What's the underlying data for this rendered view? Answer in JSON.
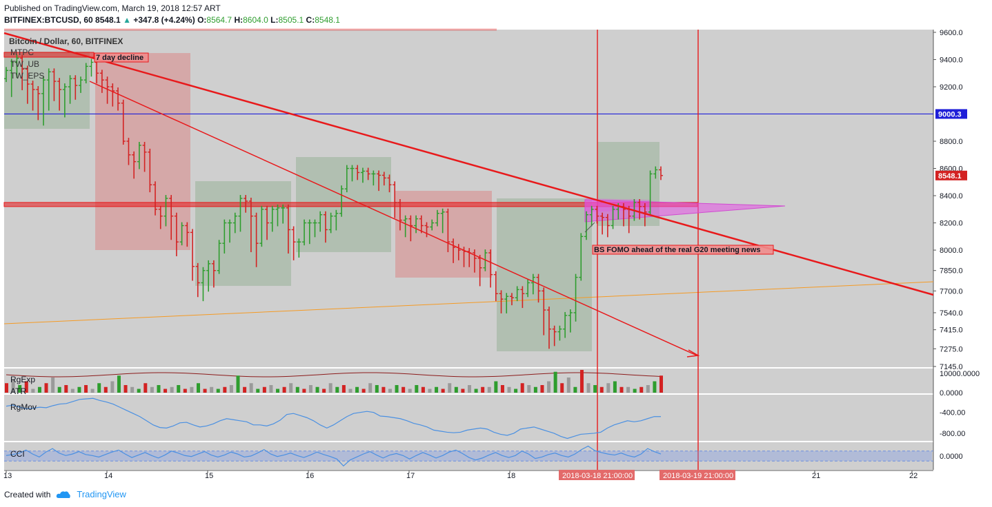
{
  "header": {
    "published": "Published on TradingView.com, March 19, 2018 12:57 ART",
    "symbol": "BITFINEX:BTCUSD, 60",
    "last": "8548.1",
    "change": "+347.8 (+4.24%)",
    "o_label": "O:",
    "o": "8564.7",
    "h_label": "H:",
    "h": "8604.0",
    "l_label": "L:",
    "l": "8505.1",
    "c_label": "C:",
    "c": "8548.1"
  },
  "footer": {
    "created_with": "Created with",
    "brand": "TradingView"
  },
  "colors": {
    "bull": "#2e9d2e",
    "bear": "#d32222",
    "trend": "#e8191b",
    "blue_level": "#1f1fd8",
    "orange": "#f59a23",
    "indicator": "#4a90e2"
  },
  "chart_data": {
    "type": "candlestick",
    "title": "Bitcoin / Dollar, 60, BITFINEX",
    "studies": [
      "MTPC",
      "TW_UB",
      "TW_EPS"
    ],
    "yaxis_ticks": [
      "9600.0",
      "9400.0",
      "9200.0",
      "8800.0",
      "8600.0",
      "8400.0",
      "8200.0",
      "8000.0",
      "7850.0",
      "7700.0",
      "7540.0",
      "7415.0",
      "7275.0",
      "7145.0"
    ],
    "xaxis_ticks": [
      "13",
      "14",
      "15",
      "16",
      "17",
      "18",
      "21",
      "22"
    ],
    "ylim": [
      7140,
      9620
    ],
    "price_tags": [
      {
        "label": "9000.3",
        "value": 9000.3,
        "color": "#1f1fd8"
      },
      {
        "label": "8548.1",
        "value": 8548.1,
        "color": "#d32222"
      }
    ],
    "horizontal_levels": [
      {
        "name": "blue",
        "value": 9000.3
      },
      {
        "name": "resistance",
        "value": 8335
      }
    ],
    "annotations": [
      {
        "text": "7 day decline"
      },
      {
        "text": "BS FOMO ahead of the real G20 meeting news"
      }
    ],
    "time_markers": [
      "2018-03-18 21:00:00",
      "2018-03-19 21:00:00"
    ],
    "candles": [
      9260,
      9320,
      9150,
      9380,
      9290,
      9410,
      9200,
      9330,
      9100,
      9220,
      9050,
      9180,
      8980,
      9150,
      8940,
      9250,
      9050,
      9310,
      9120,
      9240,
      9050,
      9180,
      9000,
      9200,
      9100,
      9260,
      9130,
      9210,
      9180,
      9250,
      9260,
      9350,
      9300,
      9380,
      9250,
      9300,
      9180,
      9250,
      9100,
      9200,
      9080,
      9170,
      9050,
      9080,
      8900,
      8800,
      8650,
      8700,
      8550,
      8650,
      8620,
      8770,
      8600,
      8720,
      8450,
      8480,
      8280,
      8300,
      8180,
      8250,
      8200,
      8380,
      8100,
      8250,
      7980,
      8060,
      8080,
      8180,
      8050,
      8130,
      7800,
      7880,
      7680,
      7760,
      7650,
      7850,
      7720,
      7900,
      7750,
      7850,
      7950,
      8050,
      8000,
      8200,
      8080,
      8200,
      8150,
      8250,
      8160,
      8380,
      8300,
      8360,
      8010,
      8250,
      7900,
      8050,
      8050,
      8300,
      8100,
      8200,
      8160,
      8300,
      8200,
      8310,
      8220,
      8310,
      8000,
      8150,
      7950,
      8060,
      7970,
      8060,
      8080,
      8200,
      8070,
      8200,
      8120,
      8200,
      8160,
      8260,
      8080,
      8150,
      8160,
      8250,
      8170,
      8270,
      8330,
      8450,
      8480,
      8600,
      8530,
      8600,
      8540,
      8570,
      8520,
      8580,
      8540,
      8560,
      8500,
      8560,
      8460,
      8550,
      8500,
      8530,
      8450,
      8480,
      8260,
      8350,
      8170,
      8220,
      8120,
      8230,
      8090,
      8180,
      8150,
      8230,
      8150,
      8180,
      8120,
      8170,
      8180,
      8200,
      8220,
      8270,
      8150,
      8280,
      8010,
      8060,
      7930,
      8020,
      7950,
      8000,
      7900,
      7990,
      7900,
      7980,
      7860,
      7940,
      7760,
      7870,
      7870,
      7980,
      7750,
      7820,
      7650,
      7680,
      7560,
      7640,
      7560,
      7660,
      7620,
      7650,
      7660,
      7710,
      7600,
      7680,
      7700,
      7760,
      7700,
      7800,
      7640,
      7700,
      7400,
      7560,
      7300,
      7420,
      7320,
      7400,
      7360,
      7420,
      7380,
      7520,
      7420,
      7540,
      7500,
      7800,
      7800,
      8100,
      8100,
      8260,
      8200,
      8300,
      8220,
      8250,
      8140,
      8240,
      8120,
      8180,
      8200,
      8300,
      8250,
      8320,
      8200,
      8300,
      8150,
      8250,
      8240,
      8350,
      8250,
      8320,
      8200,
      8280,
      8330,
      8560,
      8550,
      8590,
      8540,
      8548
    ],
    "volume_max": 10000,
    "volume_ticks": [
      "10000.0000",
      "0.0000"
    ],
    "volume_bars": [
      5,
      7,
      4,
      6,
      2,
      3,
      5,
      8,
      3,
      4,
      2,
      3,
      4,
      2,
      5,
      3,
      6,
      9,
      4,
      3,
      2,
      5,
      3,
      4,
      2,
      3,
      4,
      2,
      3,
      5,
      2,
      3,
      2,
      3,
      4,
      9,
      3,
      5,
      2,
      3,
      4,
      2,
      3,
      5,
      3,
      2,
      4,
      3,
      2,
      5,
      3,
      4,
      2,
      3,
      2,
      5,
      4,
      3,
      2,
      4,
      3,
      2,
      4,
      3,
      2,
      3,
      2,
      5,
      3,
      2,
      4,
      2,
      3,
      3,
      6,
      4,
      3,
      2,
      5,
      4,
      3,
      4,
      6,
      11,
      5,
      8,
      3,
      12,
      5,
      4,
      3,
      5,
      6,
      3,
      3,
      2,
      3,
      4,
      6,
      9
    ],
    "indicators": [
      {
        "name": "RgExp"
      },
      {
        "name": "ATR"
      },
      {
        "name": "RgMov",
        "ticks": [
          "-400.00",
          "-800.00"
        ],
        "series": [
          -280,
          -260,
          -300,
          -330,
          -320,
          -300,
          -310,
          -270,
          -240,
          -230,
          -190,
          -150,
          -140,
          -130,
          -170,
          -200,
          -240,
          -300,
          -360,
          -420,
          -480,
          -560,
          -640,
          -690,
          -700,
          -660,
          -600,
          -590,
          -640,
          -680,
          -660,
          -620,
          -560,
          -520,
          -540,
          -560,
          -580,
          -640,
          -640,
          -660,
          -620,
          -550,
          -440,
          -420,
          -460,
          -500,
          -560,
          -640,
          -700,
          -640,
          -560,
          -480,
          -420,
          -400,
          -380,
          -400,
          -470,
          -480,
          -500,
          -520,
          -560,
          -610,
          -640,
          -680,
          -740,
          -760,
          -780,
          -790,
          -780,
          -740,
          -720,
          -700,
          -720,
          -780,
          -820,
          -840,
          -800,
          -720,
          -700,
          -680,
          -720,
          -760,
          -800,
          -860,
          -900,
          -860,
          -820,
          -810,
          -800,
          -780,
          -700,
          -640,
          -600,
          -560,
          -580,
          -560,
          -520,
          -480,
          -480
        ]
      },
      {
        "name": "CCI",
        "ticks": [
          "0.0000"
        ],
        "series": [
          10,
          30,
          60,
          120,
          40,
          -20,
          80,
          150,
          60,
          10,
          40,
          90,
          30,
          10,
          -20,
          30,
          80,
          120,
          40,
          -30,
          20,
          70,
          10,
          -40,
          20,
          100,
          60,
          10,
          -10,
          40,
          90,
          20,
          -20,
          20,
          80,
          40,
          -20,
          0,
          60,
          130,
          40,
          -10,
          20,
          60,
          10,
          -30,
          20,
          80,
          30,
          -10,
          -60,
          -200,
          -80,
          -20,
          40,
          90,
          20,
          -40,
          20,
          50,
          10,
          -60,
          10,
          70,
          20,
          -40,
          10,
          80,
          120,
          50,
          -30,
          -80,
          -40,
          20,
          70,
          10,
          -30,
          10,
          100,
          40,
          -50,
          -20,
          30,
          60,
          10,
          -20,
          40,
          130,
          200,
          110,
          70,
          40,
          20,
          60,
          10,
          -20,
          40,
          150,
          90,
          40
        ]
      }
    ],
    "x_labels_extra": [
      "2018-03-18 21:00:00",
      "2018-03-19 21:00:00"
    ]
  }
}
